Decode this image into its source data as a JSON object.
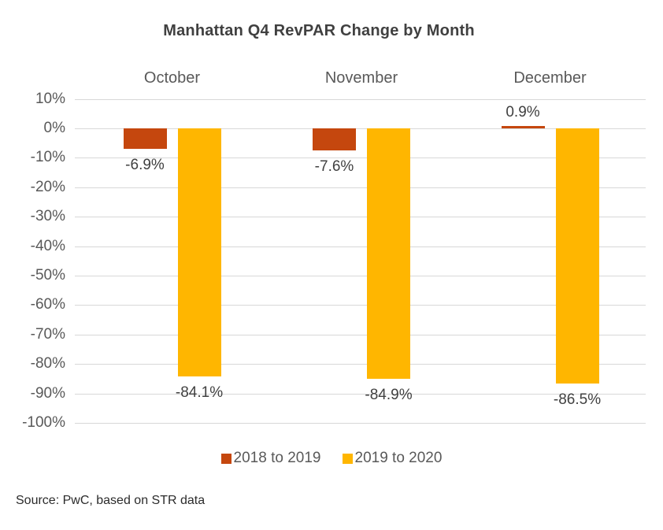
{
  "title": "Manhattan Q4 RevPAR Change by Month",
  "source_note": "Source: PwC, based on STR data",
  "colors": {
    "background": "#FFFFFF",
    "series_2018_2019": "#C5470E",
    "series_2019_2020": "#FFB600",
    "gridline": "#D8D8D8",
    "axis_text": "#595959",
    "label_text": "#404040"
  },
  "chart_data": {
    "type": "bar",
    "title": "Manhattan Q4 RevPAR Change by Month",
    "categories": [
      "October",
      "November",
      "December"
    ],
    "series": [
      {
        "name": "2018 to 2019",
        "color": "#C5470E",
        "values": [
          -6.9,
          -7.6,
          0.9
        ],
        "labels": [
          "-6.9%",
          "-7.6%",
          "0.9%"
        ]
      },
      {
        "name": "2019 to 2020",
        "color": "#FFB600",
        "values": [
          -84.1,
          -84.9,
          -86.5
        ],
        "labels": [
          "-84.1%",
          "-84.9%",
          "-86.5%"
        ]
      }
    ],
    "y_axis": {
      "unit": "%",
      "min": -100,
      "max": 10,
      "ticks": [
        10,
        0,
        -10,
        -20,
        -30,
        -40,
        -50,
        -60,
        -70,
        -80,
        -90,
        -100
      ],
      "tick_labels": [
        "10%",
        "0%",
        "-10%",
        "-20%",
        "-30%",
        "-40%",
        "-50%",
        "-60%",
        "-70%",
        "-80%",
        "-90%",
        "-100%"
      ],
      "grid": true
    },
    "xlabel": "",
    "ylabel": "",
    "legend": {
      "position": "bottom",
      "entries": [
        "2018 to 2019",
        "2019 to 2020"
      ]
    }
  }
}
